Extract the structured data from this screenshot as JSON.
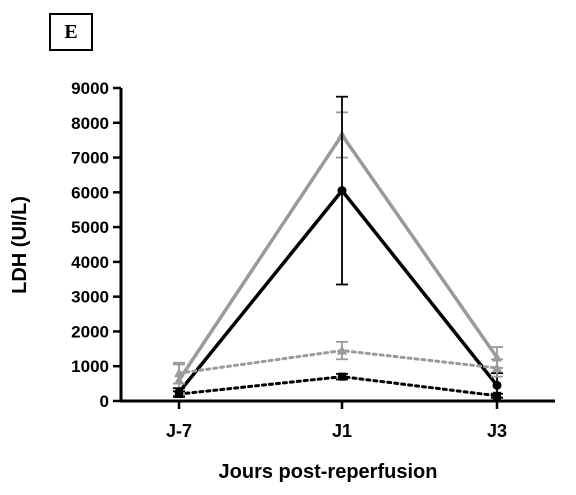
{
  "panel_label": "E",
  "chart_data": {
    "type": "line",
    "categories": [
      "J-7",
      "J1",
      "J3"
    ],
    "xlabel": "Jours post-reperfusion",
    "ylabel": "LDH  (UI/L)",
    "ylim": [
      0,
      9000
    ],
    "yticks": [
      0,
      1000,
      2000,
      3000,
      4000,
      5000,
      6000,
      7000,
      8000,
      9000
    ],
    "grid": false,
    "series": [
      {
        "values": [
          600,
          7650,
          1250
        ],
        "errors": [
          450,
          650,
          300
        ],
        "color": "#9a9a9a",
        "style": "solid",
        "marker": "triangle"
      },
      {
        "values": [
          250,
          6050,
          450
        ],
        "errors": [
          120,
          2700,
          350
        ],
        "color": "#000000",
        "style": "solid",
        "marker": "circle"
      },
      {
        "values": [
          800,
          1450,
          950
        ],
        "errors": [
          300,
          250,
          250
        ],
        "color": "#9a9a9a",
        "style": "dotted",
        "marker": "triangle"
      },
      {
        "values": [
          200,
          700,
          150
        ],
        "errors": [
          80,
          80,
          60
        ],
        "color": "#000000",
        "style": "dotted",
        "marker": "square"
      }
    ]
  }
}
